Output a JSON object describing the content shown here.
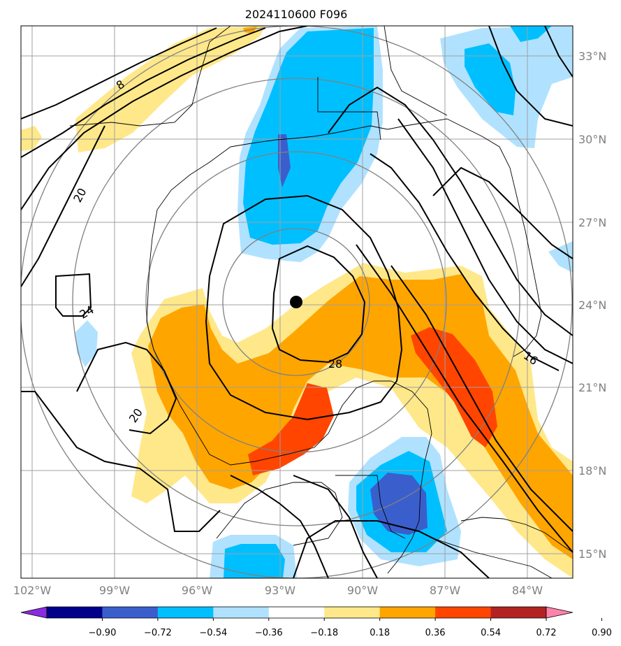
{
  "title": "2024110600 F096",
  "map": {
    "longitude_ticks": [
      "102°W",
      "99°W",
      "96°W",
      "93°W",
      "90°W",
      "87°W",
      "84°W"
    ],
    "latitude_ticks": [
      "33°N",
      "30°N",
      "27°N",
      "24°N",
      "21°N",
      "18°N",
      "15°N"
    ],
    "contour_labels": [
      "8",
      "20",
      "24",
      "28",
      "20",
      "16"
    ],
    "storm_center": {
      "lon": -92.5,
      "lat": 24.0
    },
    "colors": {
      "gridline": "#a0a0a0",
      "range_rings": "#808080",
      "coastline": "#000000",
      "contours": "#000000"
    }
  },
  "colorbar": {
    "tick_labels": [
      "−0.90",
      "−0.72",
      "−0.54",
      "−0.36",
      "−0.18",
      "0.18",
      "0.36",
      "0.54",
      "0.72",
      "0.90"
    ],
    "bins": [
      {
        "color": "#8a2be2"
      },
      {
        "color": "#00008b"
      },
      {
        "color": "#3a5fcd"
      },
      {
        "color": "#00bfff"
      },
      {
        "color": "#b0e2ff"
      },
      {
        "color": "#ffffff"
      },
      {
        "color": "#ffe88a"
      },
      {
        "color": "#ffa500"
      },
      {
        "color": "#ff4500"
      },
      {
        "color": "#b22222"
      },
      {
        "color": "#ff82ab"
      }
    ]
  }
}
